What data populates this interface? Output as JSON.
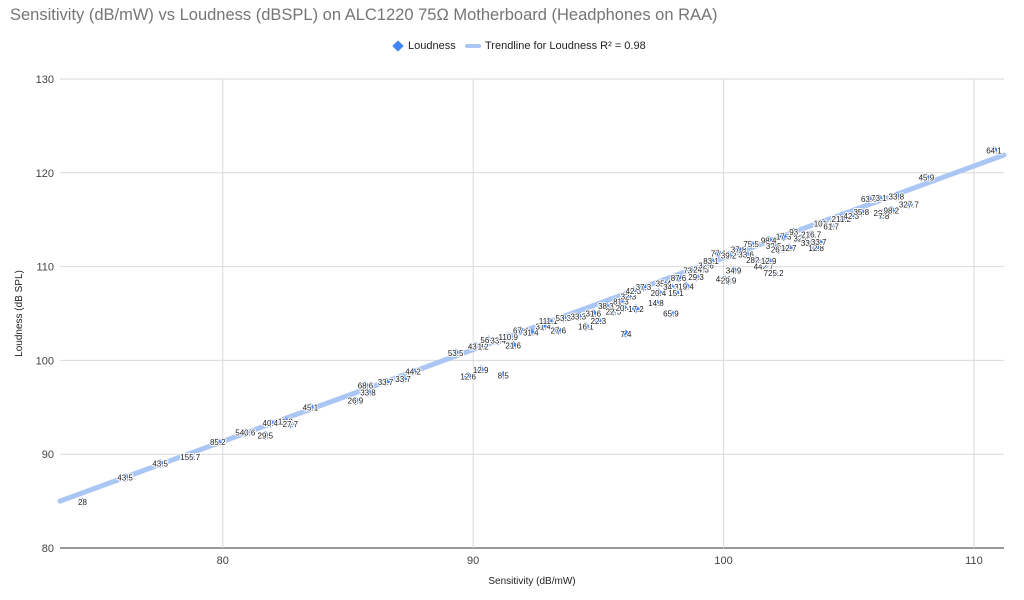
{
  "chart_data": {
    "type": "scatter",
    "title": "Sensitivity (dB/mW) vs Loudness (dBSPL) on ALC1220 75Ω Motherboard (Headphones on RAA)",
    "xlabel": "Sensitivity (dB/mW)",
    "ylabel": "Loudness (dB SPL)",
    "xlim": [
      73.5,
      111.2
    ],
    "ylim": [
      80,
      130
    ],
    "x_ticks": [
      80,
      90,
      100,
      110
    ],
    "y_ticks": [
      80,
      90,
      100,
      110,
      120,
      130
    ],
    "grid": true,
    "legend_position": "top-center",
    "legend": {
      "points_label": "Loudness",
      "trend_label": "Trendline for Loudness R² = 0.98"
    },
    "colors": {
      "points": "#4285f4",
      "trendline": "#aac6f4",
      "grid": "#d9d9d9",
      "title": "#757575"
    },
    "trendline": {
      "x": [
        73.5,
        111.2
      ],
      "y": [
        85.0,
        121.9
      ]
    },
    "series": [
      {
        "name": "Loudness",
        "points": [
          {
            "x": 74.4,
            "y": 84.9,
            "label": "28"
          },
          {
            "x": 76.1,
            "y": 87.5,
            "label": "43.5"
          },
          {
            "x": 77.5,
            "y": 89.0,
            "label": "43.5"
          },
          {
            "x": 78.7,
            "y": 89.7,
            "label": "155.7"
          },
          {
            "x": 79.8,
            "y": 91.3,
            "label": "85.2"
          },
          {
            "x": 80.9,
            "y": 92.3,
            "label": "540.6"
          },
          {
            "x": 81.7,
            "y": 92.0,
            "label": "29.5"
          },
          {
            "x": 81.9,
            "y": 93.3,
            "label": "40.4"
          },
          {
            "x": 82.5,
            "y": 93.5,
            "label": "11.2"
          },
          {
            "x": 82.7,
            "y": 93.2,
            "label": "27.7"
          },
          {
            "x": 83.5,
            "y": 95.0,
            "label": "45.1"
          },
          {
            "x": 85.3,
            "y": 95.7,
            "label": "26.9"
          },
          {
            "x": 85.7,
            "y": 97.3,
            "label": "68.6"
          },
          {
            "x": 85.8,
            "y": 96.6,
            "label": "33.8"
          },
          {
            "x": 86.5,
            "y": 97.7,
            "label": "33.7"
          },
          {
            "x": 87.2,
            "y": 98.0,
            "label": "33.7"
          },
          {
            "x": 87.6,
            "y": 98.8,
            "label": "44.2"
          },
          {
            "x": 89.3,
            "y": 100.8,
            "label": "53.5"
          },
          {
            "x": 89.8,
            "y": 98.3,
            "label": "12.6"
          },
          {
            "x": 90.3,
            "y": 99.0,
            "label": "12.9"
          },
          {
            "x": 91.2,
            "y": 98.4,
            "label": "8.5"
          },
          {
            "x": 90.1,
            "y": 101.5,
            "label": "43.3"
          },
          {
            "x": 90.4,
            "y": 101.5,
            "label": "1.2"
          },
          {
            "x": 90.6,
            "y": 102.2,
            "label": "56.2"
          },
          {
            "x": 91.0,
            "y": 102.1,
            "label": "33.4"
          },
          {
            "x": 91.4,
            "y": 102.5,
            "label": "110.9"
          },
          {
            "x": 91.6,
            "y": 101.6,
            "label": "21.6"
          },
          {
            "x": 91.9,
            "y": 103.2,
            "label": "67.4"
          },
          {
            "x": 92.3,
            "y": 103.0,
            "label": "31.4"
          },
          {
            "x": 92.8,
            "y": 103.6,
            "label": "31.4"
          },
          {
            "x": 93.0,
            "y": 104.2,
            "label": "111.1"
          },
          {
            "x": 93.4,
            "y": 103.2,
            "label": "27.6"
          },
          {
            "x": 93.6,
            "y": 104.5,
            "label": "53.3"
          },
          {
            "x": 94.2,
            "y": 104.7,
            "label": "33.3"
          },
          {
            "x": 94.5,
            "y": 103.6,
            "label": "16.1"
          },
          {
            "x": 94.8,
            "y": 105.0,
            "label": "31.6"
          },
          {
            "x": 95.0,
            "y": 104.2,
            "label": "22.3"
          },
          {
            "x": 95.3,
            "y": 105.8,
            "label": "38.3"
          },
          {
            "x": 95.6,
            "y": 105.2,
            "label": "22.5"
          },
          {
            "x": 95.9,
            "y": 106.3,
            "label": "81.3"
          },
          {
            "x": 96.1,
            "y": 102.8,
            "label": "7.4"
          },
          {
            "x": 96.0,
            "y": 105.6,
            "label": "20.4"
          },
          {
            "x": 96.2,
            "y": 106.8,
            "label": "32.3"
          },
          {
            "x": 96.4,
            "y": 107.4,
            "label": "42.3"
          },
          {
            "x": 96.5,
            "y": 105.5,
            "label": "17.2"
          },
          {
            "x": 96.8,
            "y": 107.8,
            "label": "37.3"
          },
          {
            "x": 97.3,
            "y": 106.1,
            "label": "14.8"
          },
          {
            "x": 97.4,
            "y": 107.2,
            "label": "20.4"
          },
          {
            "x": 97.6,
            "y": 108.2,
            "label": "35.4"
          },
          {
            "x": 97.9,
            "y": 107.8,
            "label": "34.3"
          },
          {
            "x": 97.9,
            "y": 105.0,
            "label": "65.9"
          },
          {
            "x": 98.1,
            "y": 107.2,
            "label": "15.1"
          },
          {
            "x": 98.2,
            "y": 108.8,
            "label": "87.6"
          },
          {
            "x": 98.5,
            "y": 107.9,
            "label": "19.4"
          },
          {
            "x": 98.7,
            "y": 109.6,
            "label": "73.2"
          },
          {
            "x": 98.9,
            "y": 108.9,
            "label": "29.3"
          },
          {
            "x": 99.1,
            "y": 109.7,
            "label": "24.3"
          },
          {
            "x": 99.3,
            "y": 110.1,
            "label": "32.6"
          },
          {
            "x": 99.5,
            "y": 110.6,
            "label": "83.1"
          },
          {
            "x": 99.8,
            "y": 111.4,
            "label": "77.1"
          },
          {
            "x": 100.0,
            "y": 108.7,
            "label": "44.1"
          },
          {
            "x": 100.2,
            "y": 108.5,
            "label": "29.9"
          },
          {
            "x": 100.2,
            "y": 111.2,
            "label": "39.2"
          },
          {
            "x": 100.4,
            "y": 109.6,
            "label": "34.9"
          },
          {
            "x": 100.6,
            "y": 111.8,
            "label": "37.8"
          },
          {
            "x": 100.9,
            "y": 111.3,
            "label": "33.6"
          },
          {
            "x": 101.1,
            "y": 112.4,
            "label": "75.5"
          },
          {
            "x": 101.3,
            "y": 110.7,
            "label": "282.5"
          },
          {
            "x": 101.6,
            "y": 110.0,
            "label": "442.7"
          },
          {
            "x": 101.8,
            "y": 110.6,
            "label": "12.9"
          },
          {
            "x": 102.0,
            "y": 109.3,
            "label": "725.2"
          },
          {
            "x": 101.8,
            "y": 112.8,
            "label": "98.4"
          },
          {
            "x": 102.0,
            "y": 112.2,
            "label": "32.5"
          },
          {
            "x": 102.2,
            "y": 111.8,
            "label": "26.7"
          },
          {
            "x": 102.4,
            "y": 113.2,
            "label": "17.3"
          },
          {
            "x": 102.6,
            "y": 112.0,
            "label": "12.7"
          },
          {
            "x": 102.8,
            "y": 113.7,
            "label": "93"
          },
          {
            "x": 103.1,
            "y": 113.0,
            "label": "32.4"
          },
          {
            "x": 103.4,
            "y": 112.5,
            "label": "33.9"
          },
          {
            "x": 103.5,
            "y": 113.4,
            "label": "216.7"
          },
          {
            "x": 103.7,
            "y": 112.0,
            "label": "12.8"
          },
          {
            "x": 103.8,
            "y": 112.6,
            "label": "33.7"
          },
          {
            "x": 104.0,
            "y": 114.6,
            "label": "101.1"
          },
          {
            "x": 104.3,
            "y": 114.3,
            "label": "61.7"
          },
          {
            "x": 104.7,
            "y": 115.1,
            "label": "211.2"
          },
          {
            "x": 105.1,
            "y": 115.4,
            "label": "42.3"
          },
          {
            "x": 105.5,
            "y": 115.8,
            "label": "35.8"
          },
          {
            "x": 105.8,
            "y": 117.2,
            "label": "63.2"
          },
          {
            "x": 106.2,
            "y": 117.3,
            "label": "73.1"
          },
          {
            "x": 106.3,
            "y": 115.7,
            "label": "29.7"
          },
          {
            "x": 106.4,
            "y": 115.4,
            "label": "7.8"
          },
          {
            "x": 106.7,
            "y": 116.0,
            "label": "98.2"
          },
          {
            "x": 106.9,
            "y": 117.5,
            "label": "33.8"
          },
          {
            "x": 107.4,
            "y": 116.6,
            "label": "327.7"
          },
          {
            "x": 108.1,
            "y": 119.5,
            "label": "45.9"
          },
          {
            "x": 110.8,
            "y": 122.4,
            "label": "64.1"
          }
        ]
      }
    ]
  }
}
